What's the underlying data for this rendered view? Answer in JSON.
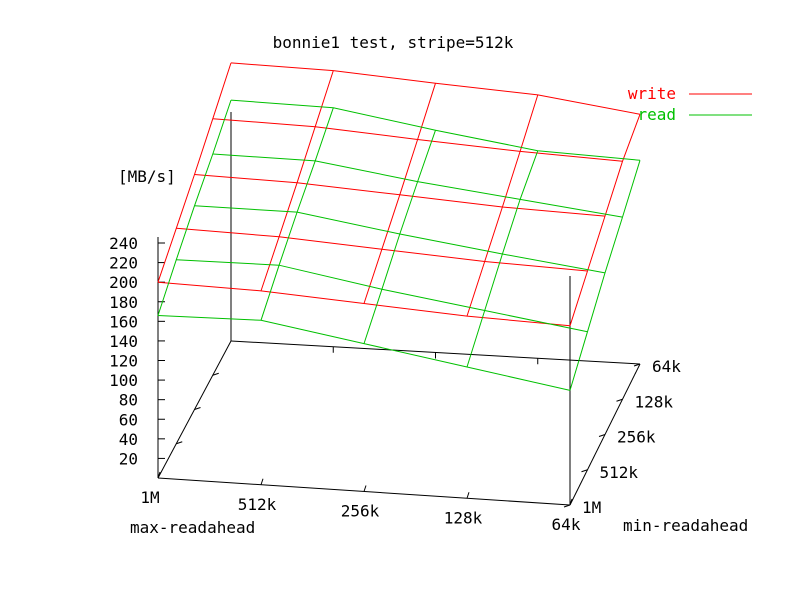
{
  "chart_data": {
    "type": "surface3d",
    "title": "bonnie1 test, stripe=512k",
    "xlabel": "max-readahead",
    "ylabel": "min-readahead",
    "zlabel": "[MB/s]",
    "x_categories": [
      "1M",
      "512k",
      "256k",
      "128k",
      "64k"
    ],
    "y_categories": [
      "1M",
      "512k",
      "256k",
      "128k",
      "64k"
    ],
    "zticks": [
      20,
      40,
      60,
      80,
      100,
      120,
      140,
      160,
      180,
      200,
      220,
      240
    ],
    "zlim": [
      0,
      240
    ],
    "legend_position": "top-right",
    "colors": {
      "write": "#ff0000",
      "read": "#00c000",
      "axis": "#000000"
    },
    "series": [
      {
        "name": "write",
        "values": [
          [
            200,
            220,
            240,
            262,
            284
          ],
          [
            198,
            218,
            238,
            260,
            282
          ],
          [
            192,
            212,
            232,
            253,
            275
          ],
          [
            186,
            206,
            226,
            247,
            269
          ],
          [
            183,
            203,
            223,
            243,
            255
          ]
        ]
      },
      {
        "name": "read",
        "values": [
          [
            166,
            188,
            208,
            226,
            246
          ],
          [
            168,
            189,
            208,
            225,
            244
          ],
          [
            151,
            171,
            192,
            210,
            227
          ],
          [
            134,
            156,
            178,
            198,
            212
          ],
          [
            117,
            141,
            165,
            186,
            208
          ]
        ]
      }
    ]
  }
}
